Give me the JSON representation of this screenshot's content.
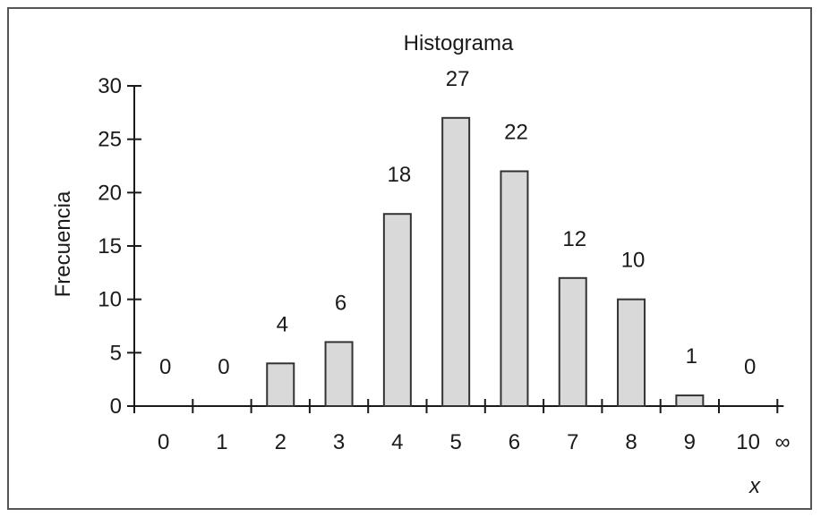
{
  "chart_data": {
    "type": "bar",
    "title": "Histograma",
    "ylabel": "Frecuencia",
    "xlabel": "x",
    "categories": [
      "0",
      "1",
      "2",
      "3",
      "4",
      "5",
      "6",
      "7",
      "8",
      "9",
      "10"
    ],
    "values": [
      0,
      0,
      4,
      6,
      18,
      27,
      22,
      12,
      10,
      1,
      0
    ],
    "data_labels": [
      "0",
      "0",
      "4",
      "6",
      "18",
      "27",
      "22",
      "12",
      "10",
      "1",
      "0"
    ],
    "x_end_label": "∞",
    "ylim": [
      0,
      30
    ],
    "yticks": [
      "0",
      "5",
      "10",
      "15",
      "20",
      "25",
      "30"
    ],
    "grid": false,
    "bar_color": "#d9d9d9",
    "bar_edge_color": "#333333"
  }
}
